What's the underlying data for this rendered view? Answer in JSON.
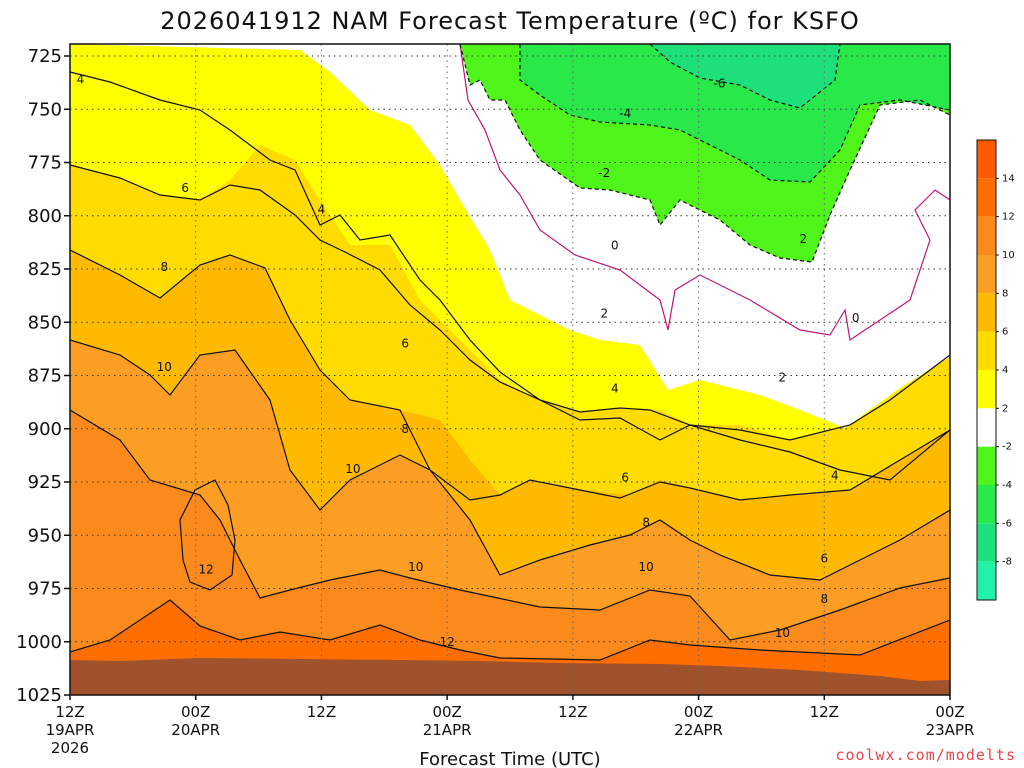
{
  "chart_data": {
    "type": "heatmap",
    "title": "2026041912 NAM Forecast Temperature (ºC) for KSFO",
    "xlabel": "Forecast Time (UTC)",
    "ylabel": "",
    "credit": "coolwx.com/modelts",
    "y_axis": {
      "ticks": [
        "725",
        "750",
        "775",
        "800",
        "825",
        "850",
        "875",
        "900",
        "925",
        "950",
        "975",
        "1000",
        "1025"
      ],
      "range": [
        725,
        1025
      ],
      "inverted": true,
      "units": "hPa"
    },
    "x_axis": {
      "ticks": [
        {
          "hour": 0,
          "label": "12Z",
          "date": "19APR",
          "year": "2026"
        },
        {
          "hour": 12,
          "label": "00Z",
          "date": "20APR",
          "year": ""
        },
        {
          "hour": 24,
          "label": "12Z",
          "date": "",
          "year": ""
        },
        {
          "hour": 36,
          "label": "00Z",
          "date": "21APR",
          "year": ""
        },
        {
          "hour": 48,
          "label": "12Z",
          "date": "",
          "year": ""
        },
        {
          "hour": 60,
          "label": "00Z",
          "date": "22APR",
          "year": ""
        },
        {
          "hour": 72,
          "label": "12Z",
          "date": "",
          "year": ""
        },
        {
          "hour": 84,
          "label": "00Z",
          "date": "23APR",
          "year": ""
        }
      ],
      "range": [
        0,
        84
      ]
    },
    "grid": true,
    "colorbar": {
      "placement": "right",
      "bins": [
        {
          "label": "14",
          "color": "#ff5a00"
        },
        {
          "label": "12",
          "color": "#ff6e00"
        },
        {
          "label": "10",
          "color": "#fb8a1c"
        },
        {
          "label": "8",
          "color": "#fc9d24"
        },
        {
          "label": "6",
          "color": "#ffba00"
        },
        {
          "label": "4",
          "color": "#ffdb00"
        },
        {
          "label": "2",
          "color": "#ffff00"
        },
        {
          "label": "-2",
          "color": "#ffffff"
        },
        {
          "label": "-4",
          "color": "#4ff41a"
        },
        {
          "label": "-6",
          "color": "#28e84a"
        },
        {
          "label": "-8",
          "color": "#1ee07a"
        },
        {
          "label": "",
          "color": "#22f2a8"
        }
      ]
    },
    "ground_color": "#a0522d",
    "contour_levels": [
      "-6",
      "-4",
      "-2",
      "0",
      "2",
      "4",
      "6",
      "8",
      "10",
      "12"
    ],
    "contour_labels": [
      {
        "text": "4",
        "hour": 1,
        "p": 736
      },
      {
        "text": "6",
        "hour": 11,
        "p": 787
      },
      {
        "text": "8",
        "hour": 9,
        "p": 824
      },
      {
        "text": "10",
        "hour": 9,
        "p": 871
      },
      {
        "text": "12",
        "hour": 13,
        "p": 966
      },
      {
        "text": "4",
        "hour": 24,
        "p": 797
      },
      {
        "text": "6",
        "hour": 32,
        "p": 860
      },
      {
        "text": "8",
        "hour": 32,
        "p": 900
      },
      {
        "text": "10",
        "hour": 27,
        "p": 919
      },
      {
        "text": "10",
        "hour": 33,
        "p": 965
      },
      {
        "text": "12",
        "hour": 36,
        "p": 1000
      },
      {
        "text": "0",
        "hour": 52,
        "p": 814
      },
      {
        "text": "2",
        "hour": 51,
        "p": 846
      },
      {
        "text": "4",
        "hour": 52,
        "p": 881
      },
      {
        "text": "6",
        "hour": 53,
        "p": 923
      },
      {
        "text": "8",
        "hour": 55,
        "p": 944
      },
      {
        "text": "10",
        "hour": 55,
        "p": 965
      },
      {
        "text": "-2",
        "hour": 51,
        "p": 780
      },
      {
        "text": "-4",
        "hour": 53,
        "p": 752
      },
      {
        "text": "-6",
        "hour": 62,
        "p": 738
      },
      {
        "text": "2",
        "hour": 70,
        "p": 811
      },
      {
        "text": "2",
        "hour": 68,
        "p": 876
      },
      {
        "text": "4",
        "hour": 73,
        "p": 922
      },
      {
        "text": "6",
        "hour": 72,
        "p": 961
      },
      {
        "text": "8",
        "hour": 72,
        "p": 980
      },
      {
        "text": "10",
        "hour": 68,
        "p": 996
      },
      {
        "text": "0",
        "hour": 75,
        "p": 848
      }
    ]
  }
}
